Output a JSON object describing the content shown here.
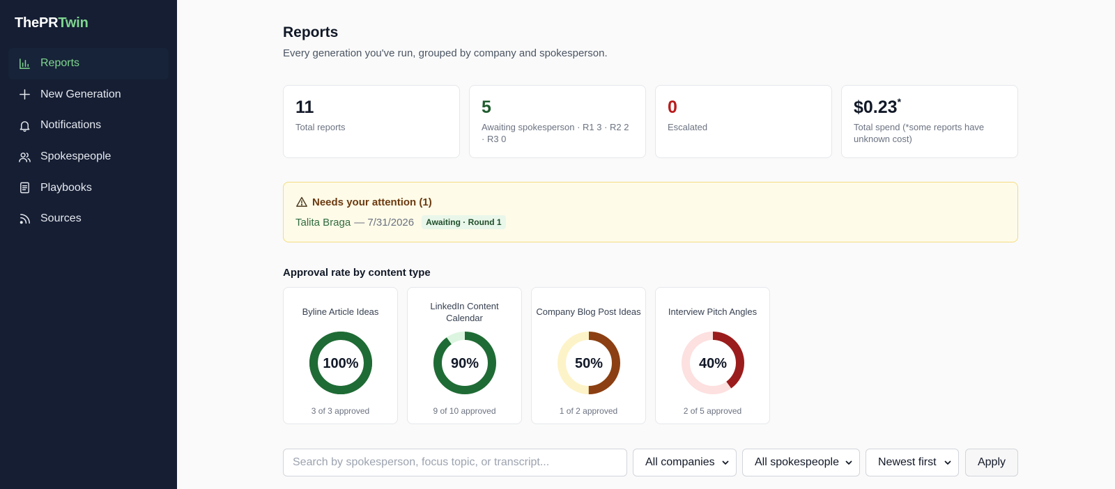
{
  "brand": {
    "prefix": "ThePR",
    "accent": "Twin"
  },
  "sidebar": {
    "items": [
      {
        "label": "Reports",
        "icon": "bar-chart-icon",
        "active": true
      },
      {
        "label": "New Generation",
        "icon": "plus-icon"
      },
      {
        "label": "Notifications",
        "icon": "bell-icon"
      },
      {
        "label": "Spokespeople",
        "icon": "users-icon"
      },
      {
        "label": "Playbooks",
        "icon": "document-icon"
      },
      {
        "label": "Sources",
        "icon": "rss-icon"
      }
    ]
  },
  "header": {
    "title": "Reports",
    "subtitle": "Every generation you've run, grouped by company and spokesperson."
  },
  "stats": [
    {
      "value": "11",
      "label": "Total reports",
      "color": "#111827"
    },
    {
      "value": "5",
      "label": "Awaiting spokesperson · R1 3 · R2 2 · R3 0",
      "color": "#1f5c2e"
    },
    {
      "value": "0",
      "label": "Escalated",
      "color": "#b91c1c"
    },
    {
      "value": "$0.23",
      "marker": "*",
      "label": "Total spend (*some reports have unknown cost)",
      "color": "#111827"
    }
  ],
  "attention": {
    "title": "Needs your attention (1)",
    "items": [
      {
        "name": "Talita Braga",
        "date": "— 7/31/2026",
        "badge": "Awaiting · Round 1"
      }
    ]
  },
  "approval": {
    "heading": "Approval rate by content type",
    "cards": [
      {
        "title": "Byline Article Ideas",
        "percent": 100,
        "pct_label": "100%",
        "sub": "3 of 3 approved",
        "color": "#1f6b35",
        "track": "#1f6b35"
      },
      {
        "title": "LinkedIn Content Calendar",
        "percent": 90,
        "pct_label": "90%",
        "sub": "9 of 10 approved",
        "color": "#1f6b35",
        "track": "#dcf5e0"
      },
      {
        "title": "Company Blog Post Ideas",
        "percent": 50,
        "pct_label": "50%",
        "sub": "1 of 2 approved",
        "color": "#8b3f12",
        "track": "#fdf3c8"
      },
      {
        "title": "Interview Pitch Angles",
        "percent": 40,
        "pct_label": "40%",
        "sub": "2 of 5 approved",
        "color": "#9b1c1c",
        "track": "#fde0e0"
      }
    ]
  },
  "filters": {
    "search_placeholder": "Search by spokesperson, focus topic, or transcript...",
    "company": "All companies",
    "spokesperson": "All spokespeople",
    "sort": "Newest first",
    "apply_label": "Apply"
  }
}
